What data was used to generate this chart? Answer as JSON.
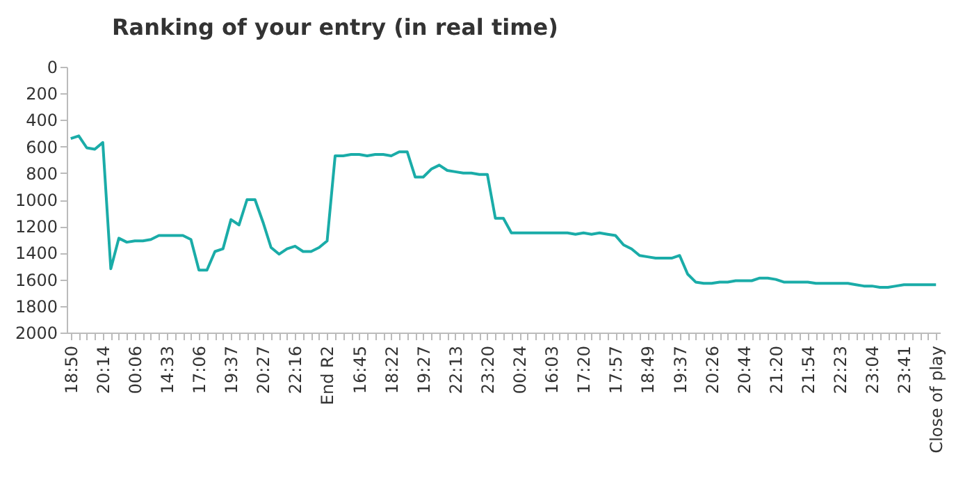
{
  "chart_data": {
    "type": "line",
    "title": "Ranking of your entry (in real time)",
    "categories": [
      "18:50",
      null,
      null,
      null,
      "20:14",
      null,
      null,
      null,
      "00:06",
      null,
      null,
      null,
      "14:33",
      null,
      null,
      null,
      "17:06",
      null,
      null,
      null,
      "19:37",
      null,
      null,
      null,
      "20:27",
      null,
      null,
      null,
      "22:16",
      null,
      null,
      null,
      "End R2",
      null,
      null,
      null,
      "16:45",
      null,
      null,
      null,
      "18:22",
      null,
      null,
      null,
      "19:27",
      null,
      null,
      null,
      "22:13",
      null,
      null,
      null,
      "23:20",
      null,
      null,
      null,
      "00:24",
      null,
      null,
      null,
      "16:03",
      null,
      null,
      null,
      "17:20",
      null,
      null,
      null,
      "17:57",
      null,
      null,
      null,
      "18:49",
      null,
      null,
      null,
      "19:37",
      null,
      null,
      null,
      "20:26",
      null,
      null,
      null,
      "20:44",
      null,
      null,
      null,
      "21:20",
      null,
      null,
      null,
      "21:54",
      null,
      null,
      null,
      "22:23",
      null,
      null,
      null,
      "23:04",
      null,
      null,
      null,
      "23:41",
      null,
      null,
      null,
      "Close of play"
    ],
    "series": [
      {
        "color": "#1aaca8",
        "values": [
          540,
          520,
          610,
          620,
          570,
          1520,
          1290,
          1320,
          1310,
          1310,
          1300,
          1270,
          1270,
          1270,
          1270,
          1300,
          1530,
          1530,
          1390,
          1370,
          1150,
          1190,
          1000,
          1000,
          1170,
          1360,
          1410,
          1370,
          1350,
          1390,
          1390,
          1360,
          1310,
          670,
          670,
          660,
          660,
          670,
          660,
          660,
          670,
          640,
          640,
          830,
          830,
          770,
          740,
          780,
          790,
          800,
          800,
          810,
          810,
          1140,
          1140,
          1250,
          1250,
          1250,
          1250,
          1250,
          1250,
          1250,
          1250,
          1260,
          1250,
          1260,
          1250,
          1260,
          1270,
          1340,
          1370,
          1420,
          1430,
          1440,
          1440,
          1440,
          1420,
          1560,
          1620,
          1630,
          1630,
          1620,
          1620,
          1610,
          1610,
          1610,
          1590,
          1590,
          1600,
          1620,
          1620,
          1620,
          1620,
          1630,
          1630,
          1630,
          1630,
          1630,
          1640,
          1650,
          1650,
          1660,
          1660,
          1650,
          1640,
          1640,
          1640,
          1640,
          1640
        ]
      }
    ],
    "ylim": [
      2000,
      0
    ],
    "yticks": [
      0,
      200,
      400,
      600,
      800,
      1000,
      1200,
      1400,
      1600,
      1800,
      2000
    ],
    "grid": false,
    "marker": "none",
    "line_style": "solid"
  }
}
